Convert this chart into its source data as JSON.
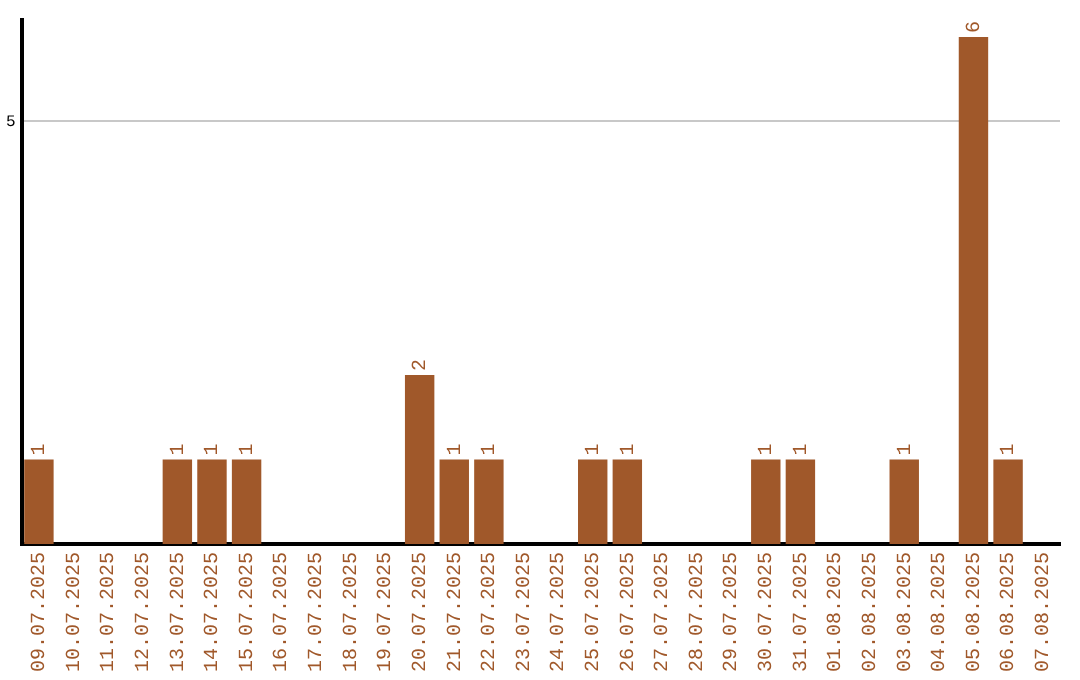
{
  "chart_data": {
    "type": "bar",
    "categories": [
      "09.07.2025",
      "10.07.2025",
      "11.07.2025",
      "12.07.2025",
      "13.07.2025",
      "14.07.2025",
      "15.07.2025",
      "16.07.2025",
      "17.07.2025",
      "18.07.2025",
      "19.07.2025",
      "20.07.2025",
      "21.07.2025",
      "22.07.2025",
      "23.07.2025",
      "24.07.2025",
      "25.07.2025",
      "26.07.2025",
      "27.07.2025",
      "28.07.2025",
      "29.07.2025",
      "30.07.2025",
      "31.07.2025",
      "01.08.2025",
      "02.08.2025",
      "03.08.2025",
      "04.08.2025",
      "05.08.2025",
      "06.08.2025",
      "07.08.2025"
    ],
    "values": [
      1,
      0,
      0,
      0,
      1,
      1,
      1,
      0,
      0,
      0,
      0,
      2,
      1,
      1,
      0,
      0,
      1,
      1,
      0,
      0,
      0,
      1,
      1,
      0,
      0,
      1,
      0,
      6,
      1,
      0
    ],
    "value_labels": [
      "1",
      null,
      null,
      null,
      "1",
      "1",
      "1",
      null,
      null,
      null,
      null,
      "2",
      "1",
      "1",
      null,
      null,
      "1",
      "1",
      null,
      null,
      null,
      "1",
      "1",
      null,
      null,
      "1",
      null,
      "6",
      "1",
      null
    ],
    "color": "#a0582a",
    "ylim": [
      0,
      6.2
    ],
    "yticks": [
      5
    ],
    "grid": "y"
  }
}
